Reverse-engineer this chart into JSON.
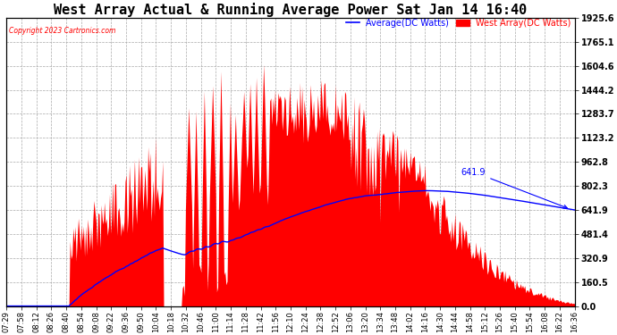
{
  "title": "West Array Actual & Running Average Power Sat Jan 14 16:40",
  "copyright": "Copyright 2023 Cartronics.com",
  "legend_avg": "Average(DC Watts)",
  "legend_west": "West Array(DC Watts)",
  "legend_avg_color": "blue",
  "legend_west_color": "red",
  "ylabel_right_values": [
    1925.6,
    1765.1,
    1604.6,
    1444.2,
    1283.7,
    1123.2,
    962.8,
    802.3,
    641.9,
    481.4,
    320.9,
    160.5,
    0.0
  ],
  "ymax": 1925.6,
  "ymin": 0.0,
  "background_color": "#ffffff",
  "plot_bg_color": "#ffffff",
  "grid_color": "#aaaaaa",
  "bar_color": "red",
  "avg_line_color": "blue",
  "title_fontsize": 11,
  "annotation_color": "blue",
  "annotation_text": "641.9",
  "x_tick_labels": [
    "07:29",
    "07:58",
    "08:12",
    "08:26",
    "08:40",
    "08:54",
    "09:08",
    "09:22",
    "09:36",
    "09:50",
    "10:04",
    "10:18",
    "10:32",
    "10:46",
    "11:00",
    "11:14",
    "11:28",
    "11:42",
    "11:56",
    "12:10",
    "12:24",
    "12:38",
    "12:52",
    "13:06",
    "13:20",
    "13:34",
    "13:48",
    "14:02",
    "14:16",
    "14:30",
    "14:44",
    "14:58",
    "15:12",
    "15:26",
    "15:40",
    "15:54",
    "16:08",
    "16:22",
    "16:36"
  ],
  "figwidth": 6.9,
  "figheight": 3.75,
  "dpi": 100
}
